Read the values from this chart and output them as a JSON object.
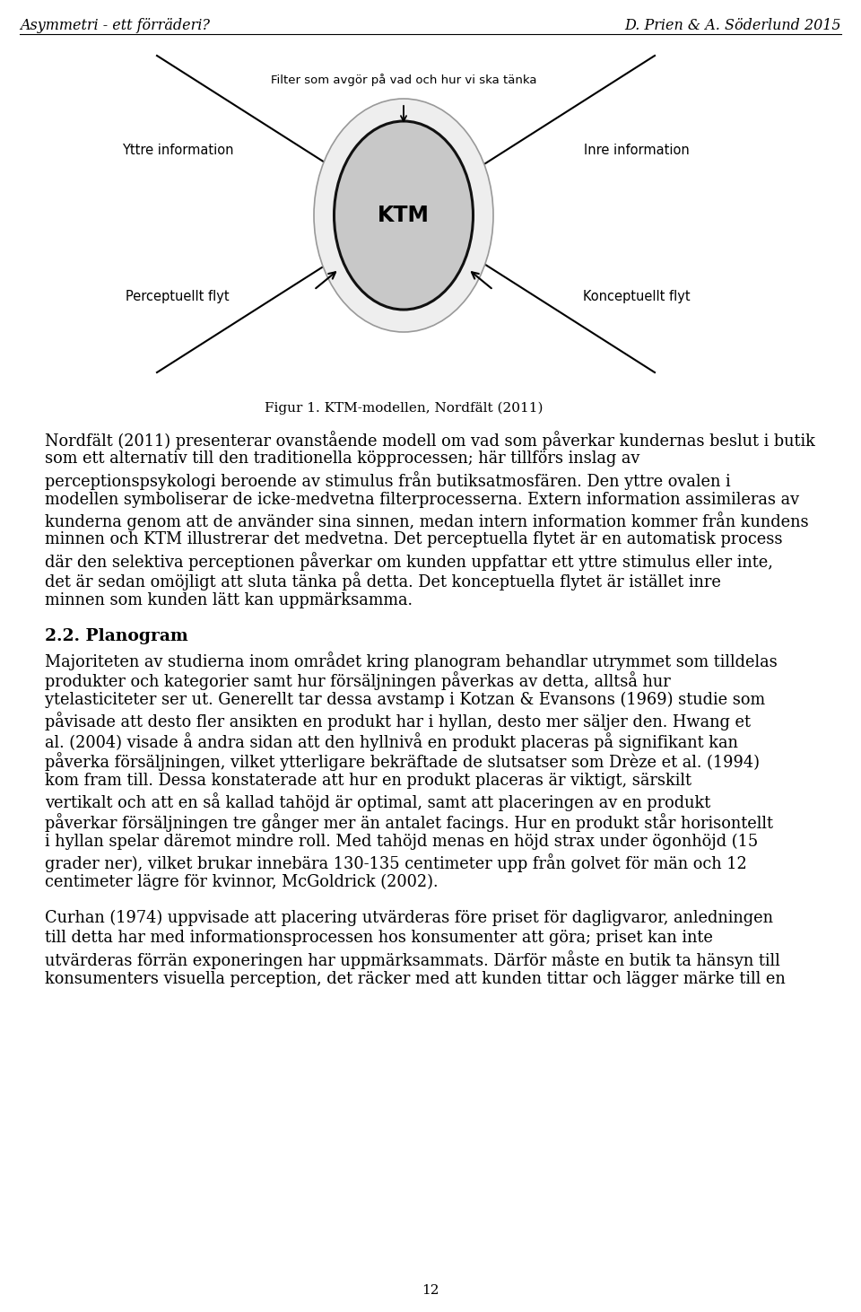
{
  "header_left": "Asymmetri - ett förräderi?",
  "header_right": "D. Prien & A. Söderlund 2015",
  "figure_caption": "Figur 1. KTM-modellen, Nordfält (2011)",
  "page_number": "12",
  "diagram": {
    "filter_label": "Filter som avgör på vad och hur vi ska tänka",
    "center_label": "KTM",
    "top_left_label": "Yttre information",
    "top_right_label": "Inre information",
    "bottom_left_label": "Perceptuellt flyt",
    "bottom_right_label": "Konceptuellt flyt"
  },
  "para1": "Nordfält (2011) presenterar ovanstående modell om vad som påverkar kundernas beslut i butik som ett alternativ till den traditionella köpprocessen; här tillförs inslag av perceptionspsykologi beroende av stimulus från butiksatmosfären. Den yttre ovalen i modellen symboliserar de icke-medvetna filterprocesserna. Extern information assimileras av kunderna genom att de använder sina sinnen, medan intern information kommer från kundens minnen och KTM illustrerar det medvetna. Det perceptuella flytet är en automatisk process där den selektiva perceptionen påverkar om kunden uppfattar ett yttre stimulus eller inte, det är sedan omöjligt att sluta tänka på detta. Det konceptuella flytet är istället inre minnen som kunden lätt kan uppmärksamma.",
  "heading2": "2.2. Planogram",
  "para2": "Majoriteten av studierna inom området kring planogram behandlar utrymmet som tilldelas produkter och kategorier samt hur försäljningen påverkas av detta, alltså hur ytelasticiteter ser ut. Generellt tar dessa avstamp i Kotzan & Evansons (1969) studie som påvisade att desto fler ansikten en produkt har i hyllan, desto mer säljer den. Hwang et al. (2004) visade å andra sidan att den hyllnivå en produkt placeras på signifikant kan påverka försäljningen, vilket ytterligare bekräftade de slutsatser som Drèze et al. (1994) kom fram till. Dessa konstaterade att hur en produkt placeras är viktigt, särskilt vertikalt och att en så kallad tahöjd är optimal, samt att placeringen av en produkt påverkar försäljningen tre gånger mer än antalet facings. Hur en produkt står horisontellt i hyllan spelar däremot mindre roll. Med tahöjd menas en höjd strax under ögonhöjd (15 grader ner), vilket brukar innebära 130-135 centimeter upp från golvet för män och 12 centimeter lägre för kvinnor, McGoldrick (2002).",
  "para3": "Curhan (1974) uppvisade att placering utvärderas före priset för dagligvaror, anledningen till detta har med informationsprocessen hos konsumenter att göra; priset kan inte utvärderas förrän exponeringen har uppmärksammats. Därför måste en butik ta hänsyn till konsumenters visuella perception, det räcker med att kunden tittar och lägger märke till en",
  "background_color": "#ffffff"
}
